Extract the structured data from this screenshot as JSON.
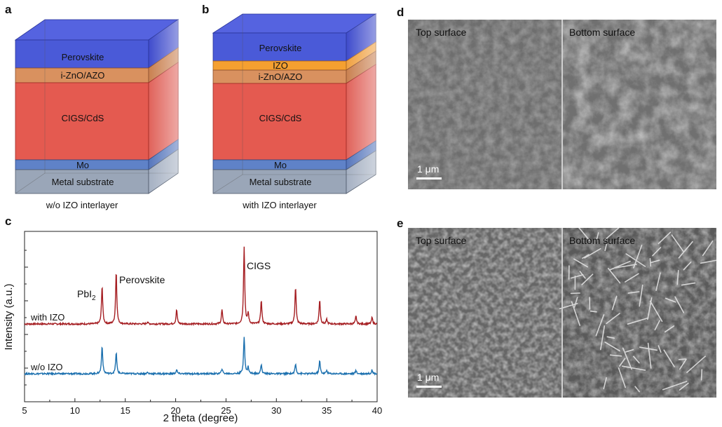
{
  "panels": {
    "a": {
      "letter": "a",
      "caption": "w/o IZO interlayer",
      "layers": [
        "Perovskite",
        "i-ZnO/AZO",
        "CIGS/CdS",
        "Mo",
        "Metal substrate"
      ]
    },
    "b": {
      "letter": "b",
      "caption": "with IZO interlayer",
      "layers": [
        "Perovskite",
        "IZO",
        "i-ZnO/AZO",
        "CIGS/CdS",
        "Mo",
        "Metal substrate"
      ]
    },
    "c": {
      "letter": "c"
    },
    "d": {
      "letter": "d",
      "left_label": "Top surface",
      "right_label": "Bottom surface",
      "scale": "1 μm"
    },
    "e": {
      "letter": "e",
      "left_label": "Top surface",
      "right_label": "Bottom surface",
      "scale": "1 μm"
    }
  },
  "colors": {
    "perovskite": "#4a5ad8",
    "izo": "#f5a030",
    "izno": "#d9915f",
    "cigs": "#e45a50",
    "mo": "#5f82c8",
    "substrate": "#9aa6b8",
    "with_izo": "#a51e22",
    "without_izo": "#1a6fae"
  },
  "chart_data": {
    "type": "line",
    "xlabel": "2 theta (degree)",
    "ylabel": "Intensity (a.u.)",
    "xlim": [
      5,
      40
    ],
    "x_ticks": [
      5,
      10,
      15,
      20,
      25,
      30,
      35,
      40
    ],
    "annotations": [
      {
        "text": "PbI",
        "sub": "2",
        "x": 12.7
      },
      {
        "text": "Perovskite",
        "x": 14.1
      },
      {
        "text": "CIGS",
        "x": 26.8
      }
    ],
    "series": [
      {
        "name": "with IZO",
        "color": "#a51e22",
        "baseline": 0.0,
        "peaks": [
          [
            12.7,
            0.6
          ],
          [
            14.1,
            0.82
          ],
          [
            17.2,
            0.03
          ],
          [
            20.1,
            0.22
          ],
          [
            24.6,
            0.22
          ],
          [
            26.8,
            1.2
          ],
          [
            27.2,
            0.16
          ],
          [
            28.5,
            0.37
          ],
          [
            31.9,
            0.58
          ],
          [
            34.3,
            0.38
          ],
          [
            35.0,
            0.07
          ],
          [
            37.9,
            0.12
          ],
          [
            39.5,
            0.1
          ]
        ]
      },
      {
        "name": "w/o IZO",
        "color": "#1a6fae",
        "baseline": 0.0,
        "peaks": [
          [
            12.7,
            0.44
          ],
          [
            14.1,
            0.33
          ],
          [
            17.2,
            0.02
          ],
          [
            20.1,
            0.06
          ],
          [
            24.6,
            0.08
          ],
          [
            26.8,
            0.58
          ],
          [
            27.2,
            0.1
          ],
          [
            28.5,
            0.14
          ],
          [
            31.9,
            0.15
          ],
          [
            34.3,
            0.2
          ],
          [
            35.0,
            0.05
          ],
          [
            37.9,
            0.05
          ],
          [
            39.5,
            0.06
          ]
        ]
      }
    ]
  }
}
